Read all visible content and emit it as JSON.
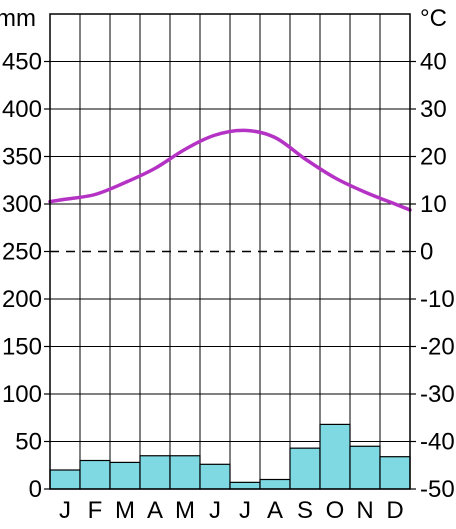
{
  "chart_data": {
    "type": "climate",
    "categories": [
      "J",
      "F",
      "M",
      "A",
      "M",
      "J",
      "J",
      "A",
      "S",
      "O",
      "N",
      "D"
    ],
    "left_axis": {
      "unit": "mm",
      "range": [
        0,
        500
      ],
      "ticks": [
        "0",
        "50",
        "100",
        "150",
        "200",
        "250",
        "300",
        "350",
        "400",
        "450"
      ]
    },
    "right_axis": {
      "unit": "°C",
      "range": [
        -50,
        50
      ],
      "ticks": [
        "-50",
        "-40",
        "-30",
        "-20",
        "-10",
        "0",
        "10",
        "20",
        "30",
        "40"
      ]
    },
    "series": [
      {
        "type": "bar",
        "axis": "left",
        "values": [
          20,
          30,
          28,
          35,
          35,
          26,
          7,
          10,
          43,
          68,
          45,
          34
        ]
      },
      {
        "type": "line",
        "axis": "right",
        "values": [
          11,
          12,
          14.5,
          17.5,
          21.5,
          24.5,
          25.5,
          24,
          19.5,
          15.5,
          12.5,
          10
        ]
      }
    ],
    "zero_line": "dashed",
    "grid": true,
    "colors": {
      "bar_fill": "#7fd9e3",
      "line": "#b533c4",
      "grid": "#000000"
    }
  }
}
